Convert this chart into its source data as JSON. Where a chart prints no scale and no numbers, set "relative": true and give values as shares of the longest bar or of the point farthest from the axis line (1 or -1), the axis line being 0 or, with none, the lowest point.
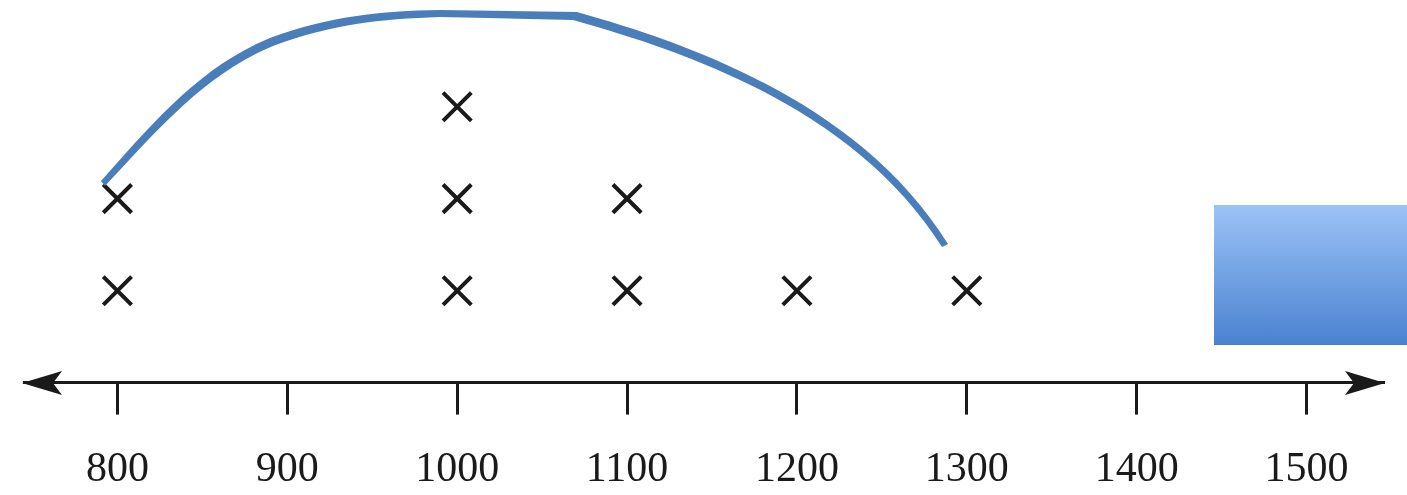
{
  "chart_data": {
    "type": "scatter",
    "relative": true,
    "x": [
      800,
      800,
      1000,
      1000,
      1000,
      1100,
      1100,
      1200,
      1300
    ],
    "values": [
      0.333,
      0.667,
      0.333,
      0.667,
      1,
      0.333,
      0.667,
      0.333,
      0.333
    ],
    "color": "#1a1a1a",
    "marker": "cross",
    "grid": false,
    "legend": false,
    "tick_labels": "x",
    "xlim": [
      745,
      1545
    ],
    "xticks": [
      800,
      900,
      1000,
      1100,
      1200,
      1300,
      1400,
      1500
    ]
  }
}
